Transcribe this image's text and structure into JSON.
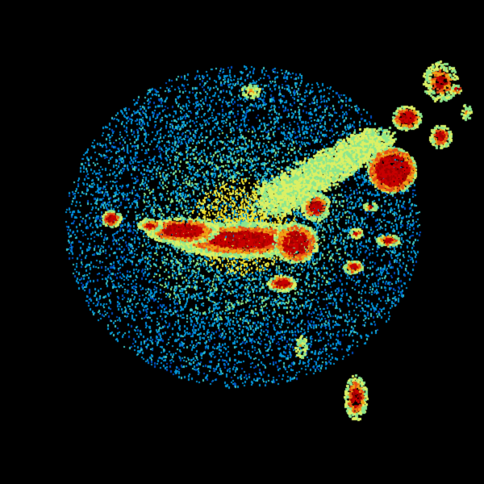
{
  "image": {
    "background": "#000000",
    "palette": [
      "#0050c8",
      "#0096dc",
      "#3cc8c8",
      "#8ce68c",
      "#dcf064",
      "#f0dc28",
      "#f0a014",
      "#e65014",
      "#c80000",
      "#a00000"
    ]
  }
}
